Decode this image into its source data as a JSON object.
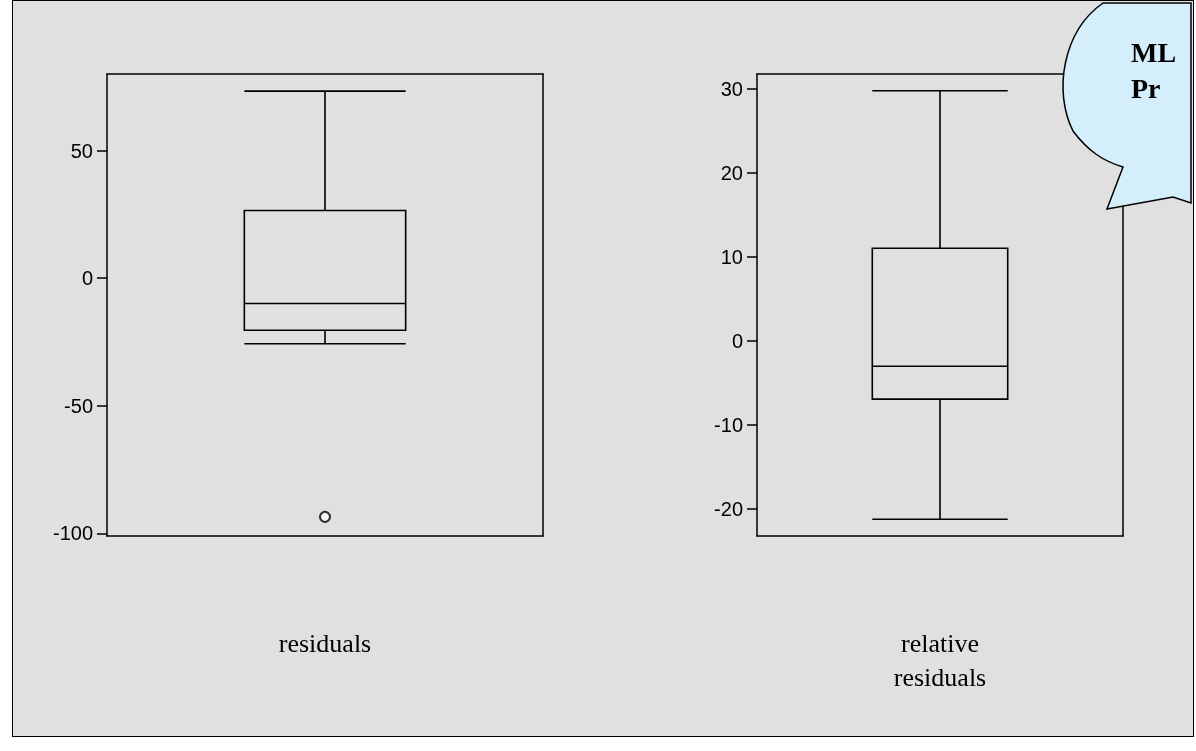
{
  "chart_data": [
    {
      "type": "box",
      "xlabel": "residuals",
      "categories": [
        null
      ],
      "ylim": [
        -101,
        80
      ],
      "yticks": [
        -100,
        -50,
        0,
        50
      ],
      "tick_labels": "y",
      "boxes": [
        {
          "low": -25.7,
          "q1": -20.4,
          "median": -9.9,
          "q3": 26.5,
          "high": 73.3,
          "outliers": [
            -93.5
          ]
        }
      ]
    },
    {
      "type": "box",
      "xlabel": "relative\nresiduals",
      "categories": [
        null
      ],
      "ylim": [
        -23.2,
        31.8
      ],
      "yticks": [
        -20,
        -10,
        0,
        10,
        20,
        30
      ],
      "tick_labels": "y",
      "boxes": [
        {
          "low": -21.2,
          "q1": -6.9,
          "median": -3,
          "q3": 11.05,
          "high": 29.8
        }
      ],
      "annotations": [
        "ML\nPr"
      ]
    }
  ]
}
